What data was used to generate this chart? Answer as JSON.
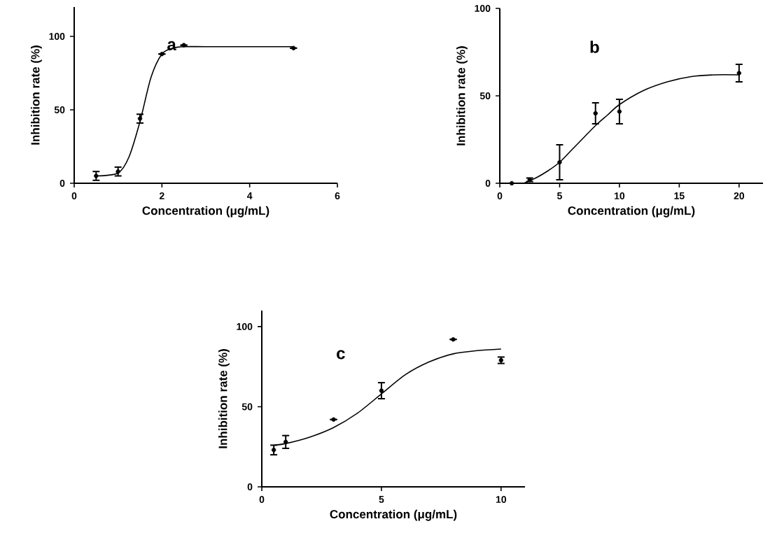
{
  "chart_data": [
    {
      "type": "scatter",
      "xlabel": "Concentration (μg/mL)",
      "ylabel": "Inhibition rate (%)",
      "annotations": [
        "a"
      ],
      "xlim": [
        0,
        6
      ],
      "ylim": [
        0,
        120
      ],
      "xticks": [
        0,
        2,
        4,
        6
      ],
      "yticks": [
        0,
        50,
        100
      ],
      "series": [
        {
          "color": "#000000",
          "marker": "circle",
          "x": [
            0.5,
            1,
            1.5,
            2,
            2.5,
            5
          ],
          "values": [
            5,
            8,
            44,
            88,
            94,
            92
          ],
          "errors": [
            3,
            3,
            3,
            null,
            null,
            null
          ]
        },
        {
          "type": "line",
          "color": "#000000",
          "marker": "none",
          "x": [
            0.5,
            1,
            1.25,
            1.5,
            1.75,
            2,
            2.25,
            2.5,
            3,
            4,
            5
          ],
          "values": [
            5,
            7,
            18,
            42,
            72,
            88,
            92,
            93,
            93,
            93,
            93
          ]
        }
      ]
    },
    {
      "type": "scatter",
      "xlabel": "Concentration (μg/mL)",
      "ylabel": "Inhibition rate (%)",
      "annotations": [
        "b"
      ],
      "xlim": [
        0,
        22
      ],
      "ylim": [
        0,
        100
      ],
      "xticks": [
        0,
        5,
        10,
        15,
        20
      ],
      "yticks": [
        0,
        50,
        100
      ],
      "series": [
        {
          "color": "#000000",
          "marker": "circle",
          "x": [
            1,
            2.5,
            5,
            8,
            10,
            20
          ],
          "values": [
            0,
            2,
            12,
            40,
            41,
            63
          ],
          "errors": [
            null,
            1,
            10,
            6,
            7,
            5
          ]
        },
        {
          "type": "line",
          "color": "#000000",
          "marker": "none",
          "x": [
            2,
            3,
            4,
            5,
            6,
            7,
            8,
            9,
            10,
            12,
            14,
            16,
            18,
            20
          ],
          "values": [
            0,
            3,
            7,
            12,
            19,
            26,
            33,
            39,
            45,
            53,
            58,
            61,
            62,
            62
          ]
        }
      ]
    },
    {
      "type": "scatter",
      "xlabel": "Concentration (μg/mL)",
      "ylabel": "Inhibition rate (%)",
      "annotations": [
        "c"
      ],
      "xlim": [
        0,
        11
      ],
      "ylim": [
        0,
        110
      ],
      "xticks": [
        0,
        5,
        10
      ],
      "yticks": [
        0,
        50,
        100
      ],
      "series": [
        {
          "color": "#000000",
          "marker": "circle",
          "x": [
            0.5,
            1,
            3,
            5,
            8,
            10
          ],
          "values": [
            23,
            28,
            42,
            60,
            92,
            79
          ],
          "errors": [
            3,
            4,
            null,
            5,
            null,
            2
          ]
        },
        {
          "type": "line",
          "color": "#000000",
          "marker": "none",
          "x": [
            0.5,
            1,
            2,
            3,
            4,
            5,
            6,
            7,
            8,
            9,
            10
          ],
          "values": [
            26,
            27,
            31,
            37,
            46,
            58,
            70,
            78,
            83,
            85,
            86
          ]
        }
      ]
    }
  ]
}
